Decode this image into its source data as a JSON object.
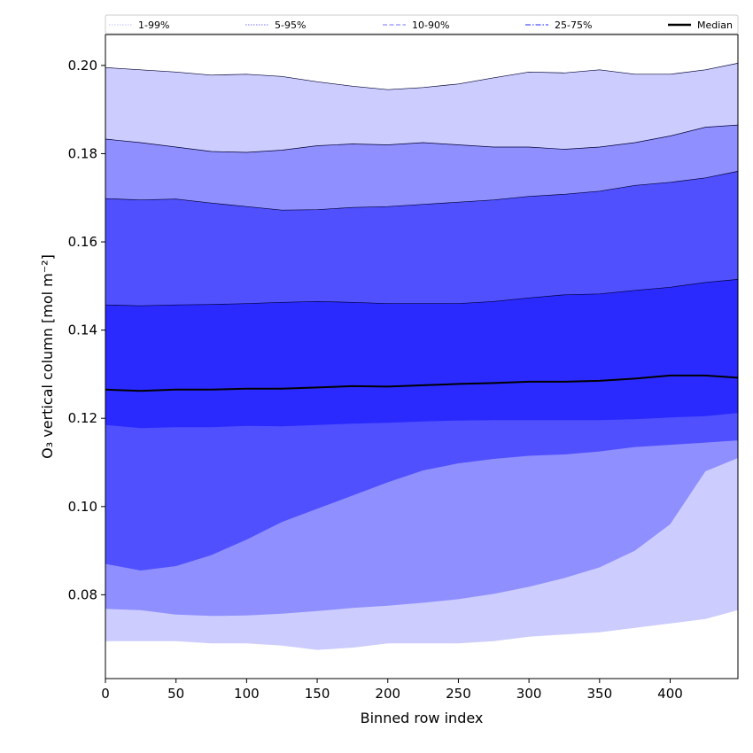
{
  "chart_data": {
    "type": "area",
    "xlabel": "Binned row index",
    "ylabel": "O₃ vertical column [mol m⁻²]",
    "xlim": [
      0,
      448
    ],
    "ylim": [
      0.061,
      0.207
    ],
    "xticks": [
      0,
      50,
      100,
      150,
      200,
      250,
      300,
      350,
      400
    ],
    "yticks": [
      0.08,
      0.1,
      0.12,
      0.14,
      0.16,
      0.18,
      0.2
    ],
    "ytick_labels": [
      "0.08",
      "0.10",
      "0.12",
      "0.14",
      "0.16",
      "0.18",
      "0.20"
    ],
    "grid": false,
    "legend_position": "top",
    "x": [
      0,
      25,
      50,
      75,
      100,
      125,
      150,
      175,
      200,
      225,
      250,
      275,
      300,
      325,
      350,
      375,
      400,
      425,
      448
    ],
    "bands": [
      {
        "name": "1-99%",
        "color": "#ccccff",
        "lower": [
          0.0695,
          0.0695,
          0.0695,
          0.069,
          0.069,
          0.0685,
          0.0675,
          0.068,
          0.069,
          0.069,
          0.069,
          0.0695,
          0.0705,
          0.071,
          0.0715,
          0.0725,
          0.0735,
          0.0745,
          0.0765
        ],
        "upper": [
          0.1995,
          0.199,
          0.1985,
          0.1978,
          0.198,
          0.1975,
          0.1963,
          0.1953,
          0.1945,
          0.195,
          0.1958,
          0.1972,
          0.1985,
          0.1983,
          0.199,
          0.198,
          0.198,
          0.199,
          0.2005
        ]
      },
      {
        "name": "5-95%",
        "color": "#8f8fff",
        "lower": [
          0.0768,
          0.0765,
          0.0755,
          0.0752,
          0.0753,
          0.0757,
          0.0763,
          0.077,
          0.0775,
          0.0782,
          0.079,
          0.0802,
          0.0818,
          0.0838,
          0.0862,
          0.09,
          0.096,
          0.108,
          0.111
        ],
        "upper": [
          0.1833,
          0.1825,
          0.1815,
          0.1805,
          0.1803,
          0.1808,
          0.1818,
          0.1822,
          0.182,
          0.1825,
          0.182,
          0.1815,
          0.1815,
          0.181,
          0.1815,
          0.1825,
          0.184,
          0.186,
          0.1865
        ]
      },
      {
        "name": "10-90%",
        "color": "#5050ff",
        "lower": [
          0.087,
          0.0855,
          0.0865,
          0.089,
          0.0925,
          0.0965,
          0.0995,
          0.1025,
          0.1055,
          0.1082,
          0.1098,
          0.1108,
          0.1115,
          0.1118,
          0.1125,
          0.1135,
          0.114,
          0.1145,
          0.115
        ],
        "upper": [
          0.1698,
          0.1695,
          0.1697,
          0.1688,
          0.168,
          0.1672,
          0.1673,
          0.1678,
          0.168,
          0.1685,
          0.169,
          0.1695,
          0.1703,
          0.1708,
          0.1715,
          0.1728,
          0.1735,
          0.1745,
          0.176
        ]
      },
      {
        "name": "25-75%",
        "color": "#2a2aff",
        "lower": [
          0.1185,
          0.1178,
          0.118,
          0.118,
          0.1183,
          0.1182,
          0.1185,
          0.1188,
          0.119,
          0.1193,
          0.1195,
          0.1196,
          0.1196,
          0.1196,
          0.1196,
          0.1198,
          0.1202,
          0.1205,
          0.1212
        ],
        "upper": [
          0.1457,
          0.1455,
          0.1457,
          0.1458,
          0.146,
          0.1463,
          0.1465,
          0.1463,
          0.146,
          0.146,
          0.146,
          0.1465,
          0.1473,
          0.148,
          0.1482,
          0.149,
          0.1497,
          0.1508,
          0.1515
        ]
      }
    ],
    "median": {
      "name": "Median",
      "color": "#000000",
      "values": [
        0.1265,
        0.1262,
        0.1265,
        0.1265,
        0.1267,
        0.1267,
        0.127,
        0.1273,
        0.1272,
        0.1275,
        0.1278,
        0.128,
        0.1283,
        0.1283,
        0.1285,
        0.129,
        0.1297,
        0.1297,
        0.1292
      ]
    },
    "legend": [
      {
        "label": "1-99%",
        "color": "#ccccff",
        "style": "dotted"
      },
      {
        "label": "5-95%",
        "color": "#8f8fff",
        "style": "dotted"
      },
      {
        "label": "10-90%",
        "color": "#8f8fff",
        "style": "dashed"
      },
      {
        "label": "25-75%",
        "color": "#5050ff",
        "style": "dashdot"
      },
      {
        "label": "Median",
        "color": "#000000",
        "style": "solid"
      }
    ]
  }
}
